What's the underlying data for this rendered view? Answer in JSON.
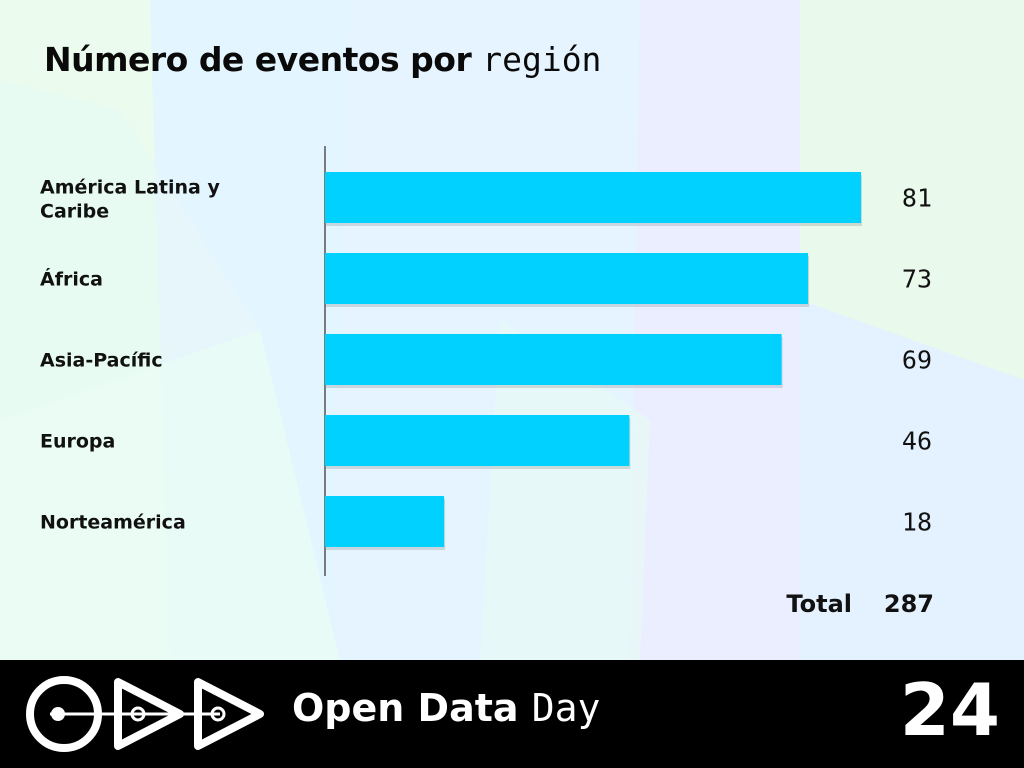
{
  "title": {
    "main": "Número de eventos por",
    "mono": "región"
  },
  "chart_data": {
    "type": "bar",
    "orientation": "horizontal",
    "categories": [
      "América Latina y Caribe",
      "África",
      "Asia-Pacífic",
      "Europa",
      "Norteamérica"
    ],
    "values": [
      81,
      73,
      69,
      46,
      18
    ],
    "xlim": [
      0,
      81
    ],
    "grid": false,
    "bar_color": "#00d1ff"
  },
  "total": {
    "label": "Total",
    "value": "287"
  },
  "footer": {
    "brand_bold": "Open Data",
    "brand_light": "Day",
    "year": "24"
  },
  "colors": {
    "accent": "#00d1ff",
    "footer_bg": "#000000"
  }
}
